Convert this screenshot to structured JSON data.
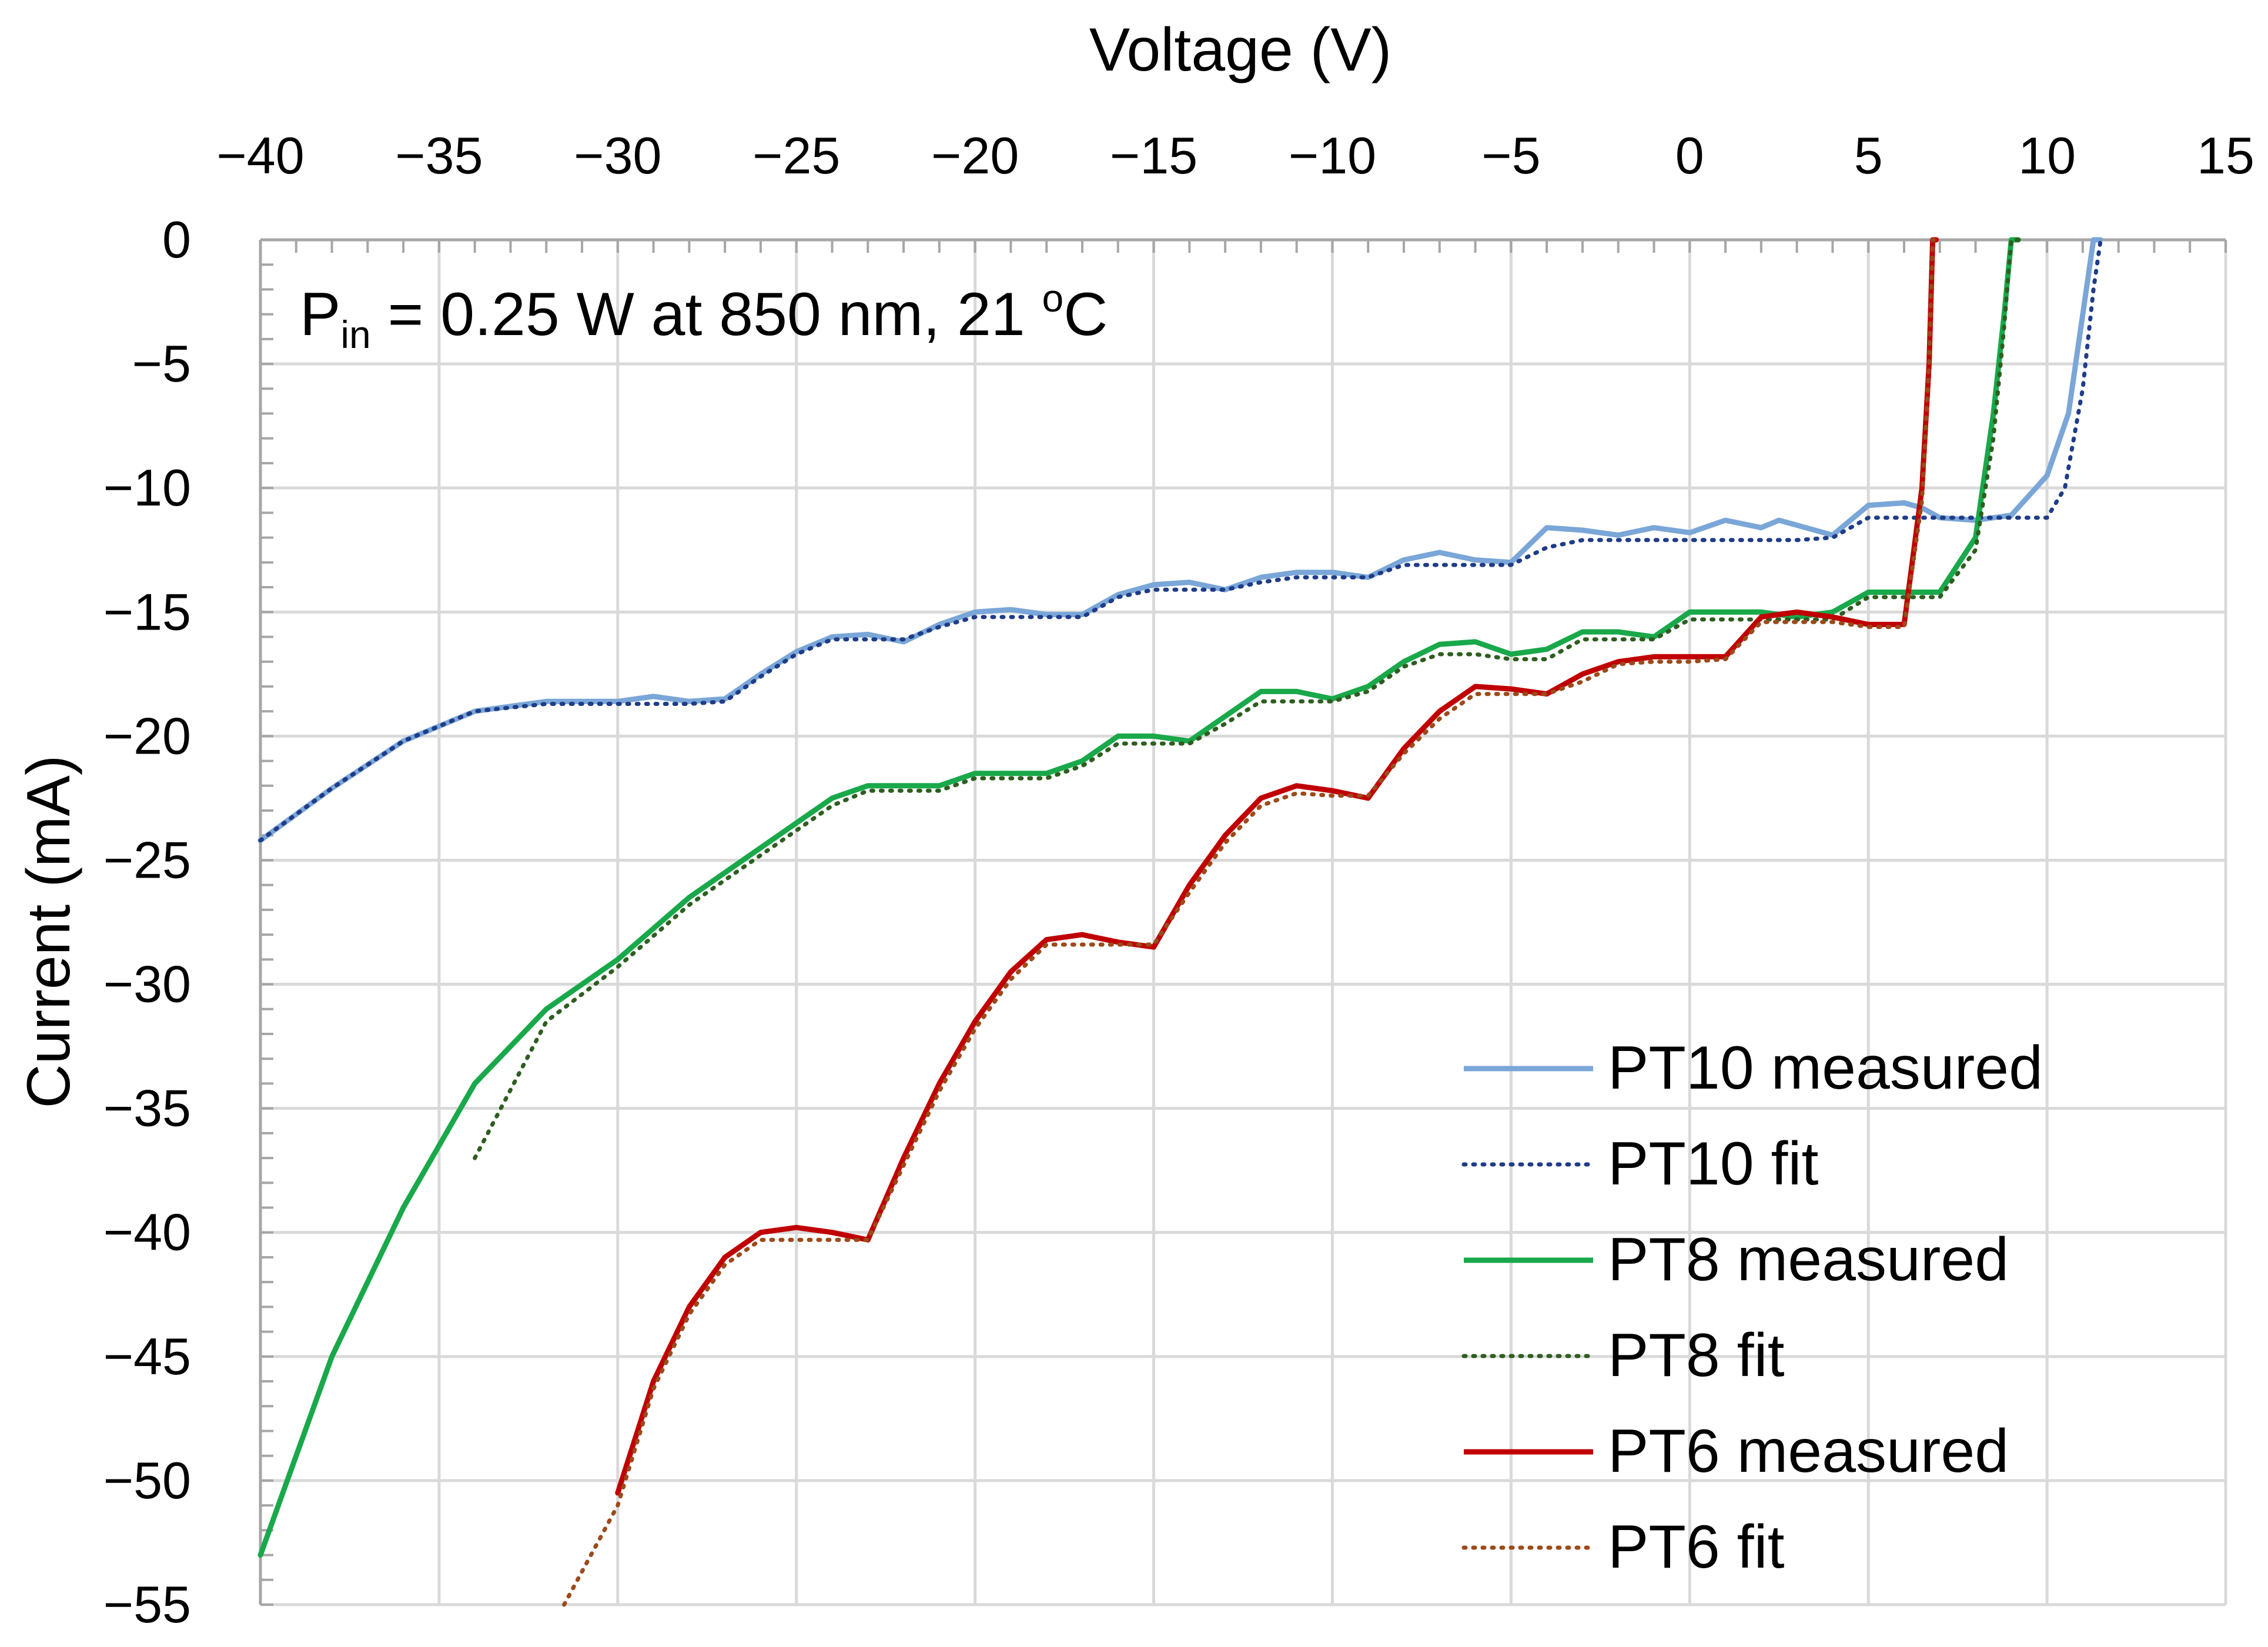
{
  "chart_data": {
    "type": "line",
    "title": "",
    "xlabel": "Voltage (V)",
    "ylabel": "Current (mA)",
    "xlim": [
      -40,
      15
    ],
    "ylim": [
      -55,
      0
    ],
    "xticks": [
      -40,
      -35,
      -30,
      -25,
      -20,
      -15,
      -10,
      -5,
      0,
      5,
      10,
      15
    ],
    "yticks": [
      0,
      -5,
      -10,
      -15,
      -20,
      -25,
      -30,
      -35,
      -40,
      -45,
      -50,
      -55
    ],
    "x_tick_labels": [
      "−40",
      "−35",
      "−30",
      "−25",
      "−20",
      "−15",
      "−10",
      "−5",
      "0",
      "5",
      "10",
      "15"
    ],
    "y_tick_labels": [
      "0",
      "−5",
      "−10",
      "−15",
      "−20",
      "−25",
      "−30",
      "−35",
      "−40",
      "−45",
      "−50",
      "−55"
    ],
    "x_axis_position": "top",
    "grid": true,
    "legend_position": "bottom-right",
    "annotation": {
      "text_main": "P",
      "text_sub": "in",
      "text_rest": " = 0.25 W at 850 nm, 21 ",
      "text_deg": "o",
      "text_unit": "C"
    },
    "series": [
      {
        "name": "PT10 measured",
        "color": "#7aa6d8",
        "style": "solid",
        "x": [
          -40,
          -38,
          -36,
          -34,
          -32,
          -30,
          -29,
          -28,
          -27,
          -26,
          -25,
          -24,
          -23,
          -22,
          -21,
          -20,
          -19,
          -18,
          -17,
          -16,
          -15,
          -14,
          -13,
          -12,
          -11,
          -10,
          -9,
          -8,
          -7,
          -6,
          -5,
          -4.5,
          -4,
          -3,
          -2,
          -1,
          0,
          1,
          2,
          2.5,
          3,
          4,
          5,
          6,
          6.5,
          7,
          8,
          9,
          10,
          10.6,
          11,
          11.3,
          11.5
        ],
        "y": [
          -24.2,
          -22.1,
          -20.2,
          -19.0,
          -18.6,
          -18.6,
          -18.4,
          -18.6,
          -18.5,
          -17.5,
          -16.6,
          -16.0,
          -15.9,
          -16.2,
          -15.5,
          -15.0,
          -14.9,
          -15.1,
          -15.1,
          -14.3,
          -13.9,
          -13.8,
          -14.1,
          -13.6,
          -13.4,
          -13.4,
          -13.6,
          -12.9,
          -12.6,
          -12.9,
          -13.0,
          -12.3,
          -11.6,
          -11.7,
          -11.9,
          -11.6,
          -11.8,
          -11.3,
          -11.6,
          -11.3,
          -11.5,
          -11.9,
          -10.7,
          -10.6,
          -10.8,
          -11.2,
          -11.3,
          -11.1,
          -9.5,
          -7.0,
          -3.0,
          0.0,
          0.0
        ]
      },
      {
        "name": "PT10 fit",
        "color": "#1f3c88",
        "style": "dotted",
        "x": [
          -40,
          -38,
          -36,
          -34,
          -32,
          -30,
          -28,
          -27,
          -26,
          -25,
          -24,
          -23,
          -22,
          -21,
          -20,
          -19,
          -18,
          -17,
          -16,
          -15,
          -14,
          -13,
          -12,
          -11,
          -10,
          -9,
          -8,
          -7,
          -6,
          -5,
          -4,
          -3,
          -2,
          -1,
          0,
          1,
          2,
          3,
          4,
          5,
          6,
          7,
          8,
          9,
          10,
          10.5,
          11,
          11.3,
          11.5
        ],
        "y": [
          -24.2,
          -22.1,
          -20.2,
          -19.0,
          -18.7,
          -18.7,
          -18.7,
          -18.6,
          -17.6,
          -16.7,
          -16.1,
          -16.1,
          -16.1,
          -15.6,
          -15.2,
          -15.2,
          -15.2,
          -15.2,
          -14.4,
          -14.1,
          -14.1,
          -14.1,
          -13.8,
          -13.6,
          -13.6,
          -13.6,
          -13.1,
          -13.1,
          -13.1,
          -13.1,
          -12.4,
          -12.1,
          -12.1,
          -12.1,
          -12.1,
          -12.1,
          -12.1,
          -12.1,
          -12.0,
          -11.2,
          -11.2,
          -11.2,
          -11.2,
          -11.2,
          -11.2,
          -10.0,
          -6.0,
          -2.0,
          0.0
        ]
      },
      {
        "name": "PT8 measured",
        "color": "#19a84a",
        "style": "solid",
        "x": [
          -40,
          -38,
          -36,
          -34,
          -32,
          -30,
          -28,
          -26,
          -25,
          -24,
          -23,
          -22,
          -21,
          -20,
          -19,
          -18,
          -17,
          -16,
          -15,
          -14,
          -13,
          -12,
          -11,
          -10,
          -9,
          -8,
          -7,
          -6,
          -5,
          -4,
          -3,
          -2,
          -1,
          0,
          1,
          2,
          3,
          4,
          5,
          6,
          7,
          8,
          8.5,
          8.8,
          9.0,
          9.2
        ],
        "y": [
          -53.0,
          -45.0,
          -39.0,
          -34.0,
          -31.0,
          -29.0,
          -26.5,
          -24.5,
          -23.5,
          -22.5,
          -22.0,
          -22.0,
          -22.0,
          -21.5,
          -21.5,
          -21.5,
          -21.0,
          -20.0,
          -20.0,
          -20.2,
          -19.2,
          -18.2,
          -18.2,
          -18.5,
          -18.0,
          -17.0,
          -16.3,
          -16.2,
          -16.7,
          -16.5,
          -15.8,
          -15.8,
          -16.0,
          -15.0,
          -15.0,
          -15.0,
          -15.2,
          -15.0,
          -14.2,
          -14.2,
          -14.2,
          -12.0,
          -7.0,
          -3.0,
          0.0,
          0.0
        ]
      },
      {
        "name": "PT8 fit",
        "color": "#2e5e1f",
        "style": "dotted",
        "x": [
          -34,
          -32,
          -30,
          -28,
          -26,
          -25,
          -24,
          -23,
          -22,
          -21,
          -20,
          -19,
          -18,
          -17,
          -16,
          -15,
          -14,
          -13,
          -12,
          -11,
          -10,
          -9,
          -8,
          -7,
          -6,
          -5,
          -4,
          -3,
          -2,
          -1,
          0,
          1,
          2,
          3,
          4,
          5,
          6,
          7,
          8,
          8.5,
          8.8,
          9.0,
          9.2
        ],
        "y": [
          -37.0,
          -31.5,
          -29.3,
          -26.8,
          -24.8,
          -23.8,
          -22.8,
          -22.2,
          -22.2,
          -22.2,
          -21.7,
          -21.7,
          -21.7,
          -21.2,
          -20.3,
          -20.3,
          -20.3,
          -19.5,
          -18.6,
          -18.6,
          -18.6,
          -18.2,
          -17.2,
          -16.7,
          -16.7,
          -16.9,
          -16.9,
          -16.1,
          -16.1,
          -16.1,
          -15.3,
          -15.3,
          -15.3,
          -15.3,
          -15.3,
          -14.4,
          -14.4,
          -14.4,
          -12.5,
          -8.0,
          -3.5,
          0.0,
          0.0
        ]
      },
      {
        "name": "PT6 measured",
        "color": "#c00000",
        "style": "solid",
        "x": [
          -30,
          -29,
          -28,
          -27,
          -26,
          -25,
          -24,
          -23,
          -22,
          -21,
          -20,
          -19,
          -18,
          -17,
          -16,
          -15,
          -14,
          -13,
          -12,
          -11,
          -10,
          -9,
          -8,
          -7,
          -6,
          -5,
          -4,
          -3,
          -2,
          -1,
          0,
          1,
          2,
          3,
          4,
          5,
          6,
          6.5,
          6.7,
          6.8,
          6.9
        ],
        "y": [
          -50.5,
          -46.0,
          -43.0,
          -41.0,
          -40.0,
          -39.8,
          -40.0,
          -40.3,
          -37.0,
          -34.0,
          -31.5,
          -29.5,
          -28.2,
          -28.0,
          -28.3,
          -28.5,
          -26.0,
          -24.0,
          -22.5,
          -22.0,
          -22.2,
          -22.5,
          -20.5,
          -19.0,
          -18.0,
          -18.1,
          -18.3,
          -17.5,
          -17.0,
          -16.8,
          -16.8,
          -16.8,
          -15.2,
          -15.0,
          -15.2,
          -15.5,
          -15.5,
          -10.0,
          -5.0,
          0.0,
          0.0
        ]
      },
      {
        "name": "PT6 fit",
        "color": "#9c4a1a",
        "style": "dotted",
        "x": [
          -31.5,
          -30,
          -29,
          -28,
          -27,
          -26,
          -25,
          -24,
          -23,
          -22,
          -21,
          -20,
          -19,
          -18,
          -17,
          -16,
          -15,
          -14,
          -13,
          -12,
          -11,
          -10,
          -9,
          -8,
          -7,
          -6,
          -5,
          -4,
          -3,
          -2,
          -1,
          0,
          1,
          2,
          3,
          4,
          5,
          6,
          6.5,
          6.7,
          6.8,
          6.9
        ],
        "y": [
          -55.0,
          -51.0,
          -46.3,
          -43.3,
          -41.3,
          -40.3,
          -40.3,
          -40.3,
          -40.3,
          -37.3,
          -34.3,
          -31.8,
          -29.8,
          -28.4,
          -28.4,
          -28.4,
          -28.4,
          -26.3,
          -24.3,
          -22.8,
          -22.3,
          -22.4,
          -22.4,
          -20.7,
          -19.3,
          -18.3,
          -18.3,
          -18.3,
          -17.8,
          -17.1,
          -17.0,
          -17.0,
          -16.9,
          -15.4,
          -15.4,
          -15.4,
          -15.6,
          -15.6,
          -10.5,
          -5.0,
          0.0,
          0.0
        ]
      }
    ]
  }
}
